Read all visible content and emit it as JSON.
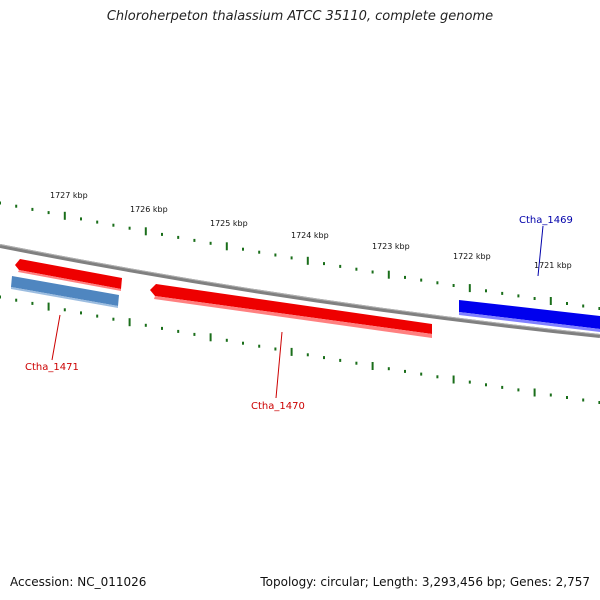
{
  "title": "Chloroherpeton thalassium ATCC 35110, complete genome",
  "footer": {
    "accession": "Accession: NC_011026",
    "summary": "Topology: circular; Length: 3,293,456 bp; Genes: 2,757"
  },
  "colors": {
    "backbone": "#808080",
    "tick": "#1a6e1a",
    "forward_gene": "#0000ee",
    "reverse_gene": "#ee0000",
    "steelblue_gene": "#4f86c0",
    "forward_label": "#0000aa",
    "reverse_label": "#cc0000"
  },
  "scale": {
    "labels": [
      "1727 kbp",
      "1726 kbp",
      "1725 kbp",
      "1724 kbp",
      "1723 kbp",
      "1722 kbp",
      "1721 kbp"
    ]
  },
  "genes": [
    {
      "id": "Ctha_1471",
      "label": "Ctha_1471",
      "strand": "reverse"
    },
    {
      "id": "Ctha_1470",
      "label": "Ctha_1470",
      "strand": "reverse"
    },
    {
      "id": "Ctha_1469",
      "label": "Ctha_1469",
      "strand": "forward"
    }
  ]
}
